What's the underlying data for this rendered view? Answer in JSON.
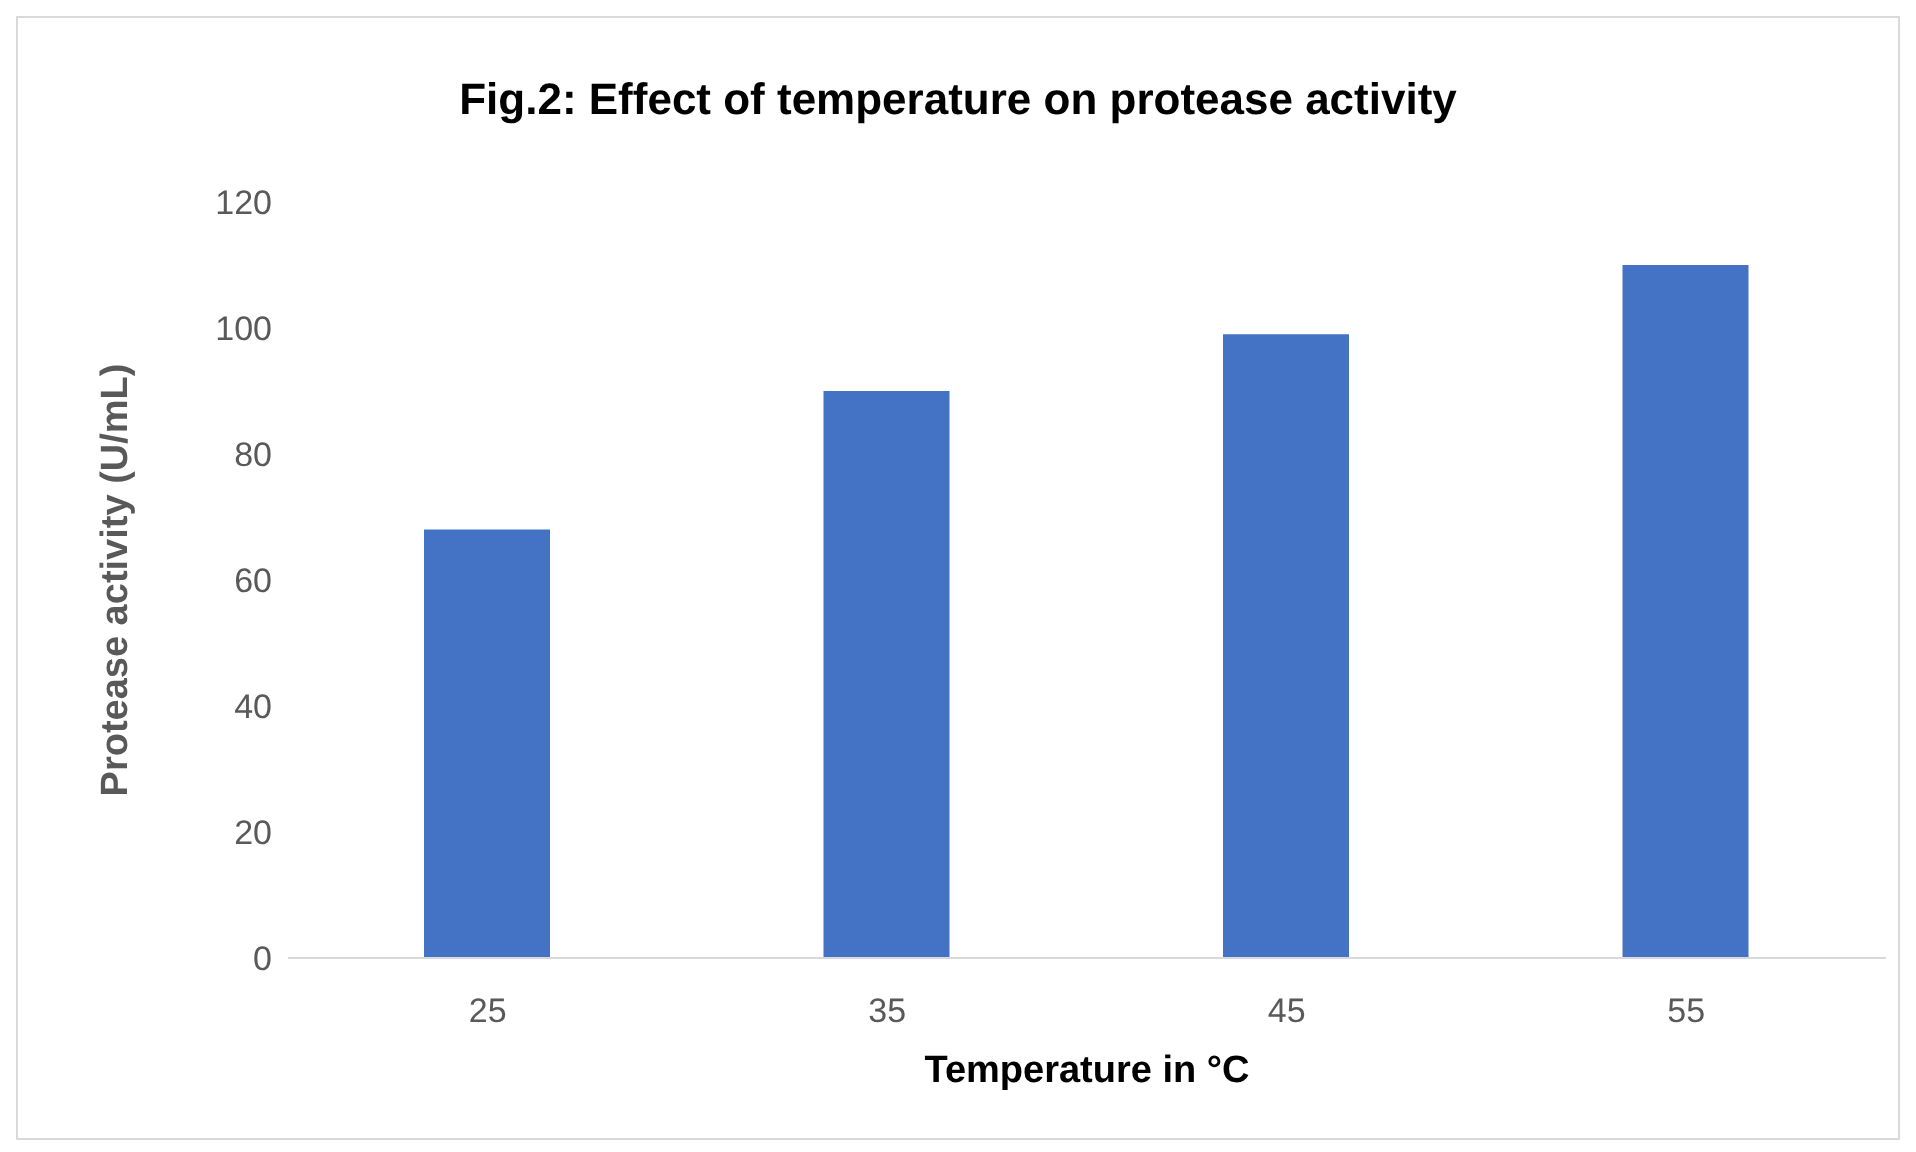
{
  "chart_data": {
    "type": "bar",
    "title": "Fig.2: Effect of temperature on protease activity",
    "xlabel": "Temperature in °C",
    "ylabel": "Protease activity (U/mL)",
    "categories": [
      "25",
      "35",
      "45",
      "55"
    ],
    "values": [
      68,
      90,
      99,
      110
    ],
    "color": "#4472c4",
    "ylim": [
      0,
      120
    ],
    "yticks": [
      0,
      20,
      40,
      60,
      80,
      100,
      120
    ],
    "grid": false,
    "legend": false
  }
}
